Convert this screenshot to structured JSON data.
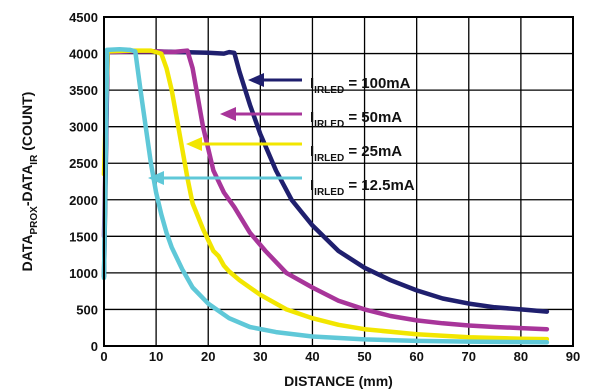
{
  "chart_data": {
    "type": "line",
    "title": "",
    "xlabel": "DISTANCE (mm)",
    "ylabel": {
      "parts": [
        {
          "text": "DATA",
          "sub": false
        },
        {
          "text": "PROX",
          "sub": true
        },
        {
          "text": "-DATA",
          "sub": false
        },
        {
          "text": "IR",
          "sub": true
        },
        {
          "text": " (COUNT)",
          "sub": false
        }
      ]
    },
    "xlim": [
      0,
      90
    ],
    "ylim": [
      0,
      4500
    ],
    "x_ticks": [
      "0",
      "10",
      "20",
      "30",
      "40",
      "50",
      "60",
      "70",
      "80",
      "90"
    ],
    "y_ticks": [
      "0",
      "500",
      "1000",
      "1500",
      "2000",
      "2500",
      "3000",
      "3500",
      "4000",
      "4500"
    ],
    "grid": true,
    "series": [
      {
        "name": "100mA",
        "color": "#1f1f6e",
        "label": {
          "main": "I",
          "sub": "IRLED",
          "suffix": " = 100mA"
        },
        "points": [
          [
            0,
            950
          ],
          [
            0.7,
            4020
          ],
          [
            5,
            4030
          ],
          [
            10,
            4030
          ],
          [
            15,
            4020
          ],
          [
            20,
            4010
          ],
          [
            23,
            4000
          ],
          [
            24,
            4020
          ],
          [
            25,
            4010
          ],
          [
            26,
            3750
          ],
          [
            28,
            3300
          ],
          [
            30,
            2900
          ],
          [
            33,
            2400
          ],
          [
            36,
            2000
          ],
          [
            40,
            1650
          ],
          [
            45,
            1300
          ],
          [
            50,
            1070
          ],
          [
            55,
            900
          ],
          [
            60,
            760
          ],
          [
            65,
            650
          ],
          [
            70,
            580
          ],
          [
            75,
            530
          ],
          [
            80,
            500
          ],
          [
            85,
            470
          ]
        ]
      },
      {
        "name": "50mA",
        "color": "#a8359a",
        "label": {
          "main": "I",
          "sub": "IRLED",
          "suffix": " = 50mA"
        },
        "points": [
          [
            0,
            1500
          ],
          [
            0.7,
            4020
          ],
          [
            5,
            4030
          ],
          [
            10,
            4030
          ],
          [
            13,
            4020
          ],
          [
            16,
            4040
          ],
          [
            17,
            3800
          ],
          [
            19,
            3000
          ],
          [
            21,
            2400
          ],
          [
            23,
            2100
          ],
          [
            25,
            1900
          ],
          [
            28,
            1550
          ],
          [
            31,
            1300
          ],
          [
            35,
            1000
          ],
          [
            40,
            800
          ],
          [
            45,
            620
          ],
          [
            50,
            500
          ],
          [
            55,
            410
          ],
          [
            60,
            350
          ],
          [
            65,
            310
          ],
          [
            70,
            280
          ],
          [
            75,
            260
          ],
          [
            80,
            245
          ],
          [
            85,
            230
          ]
        ]
      },
      {
        "name": "25mA",
        "color": "#f2e600",
        "label": {
          "main": "I",
          "sub": "IRLED",
          "suffix": " = 25mA"
        },
        "points": [
          [
            0,
            2350
          ],
          [
            0.7,
            4030
          ],
          [
            5,
            4040
          ],
          [
            9,
            4040
          ],
          [
            11,
            4000
          ],
          [
            12,
            3800
          ],
          [
            13,
            3500
          ],
          [
            14,
            3100
          ],
          [
            15,
            2700
          ],
          [
            16,
            2300
          ],
          [
            17,
            1950
          ],
          [
            19,
            1600
          ],
          [
            21,
            1300
          ],
          [
            22,
            1230
          ],
          [
            23,
            1100
          ],
          [
            24,
            1020
          ],
          [
            26,
            900
          ],
          [
            30,
            700
          ],
          [
            35,
            500
          ],
          [
            40,
            380
          ],
          [
            45,
            290
          ],
          [
            50,
            230
          ],
          [
            60,
            160
          ],
          [
            70,
            120
          ],
          [
            80,
            100
          ],
          [
            85,
            95
          ]
        ]
      },
      {
        "name": "12.5mA",
        "color": "#5fc8d8",
        "label": {
          "main": "I",
          "sub": "IRLED",
          "suffix": " = 12.5mA"
        },
        "points": [
          [
            0,
            930
          ],
          [
            0.6,
            4050
          ],
          [
            3,
            4060
          ],
          [
            5,
            4050
          ],
          [
            6,
            4030
          ],
          [
            7,
            3500
          ],
          [
            8,
            3000
          ],
          [
            9,
            2500
          ],
          [
            10,
            2100
          ],
          [
            11,
            1800
          ],
          [
            12,
            1550
          ],
          [
            13,
            1350
          ],
          [
            15,
            1050
          ],
          [
            17,
            800
          ],
          [
            20,
            580
          ],
          [
            24,
            380
          ],
          [
            28,
            260
          ],
          [
            33,
            190
          ],
          [
            40,
            130
          ],
          [
            50,
            90
          ],
          [
            60,
            70
          ],
          [
            70,
            60
          ],
          [
            85,
            50
          ]
        ]
      }
    ]
  }
}
